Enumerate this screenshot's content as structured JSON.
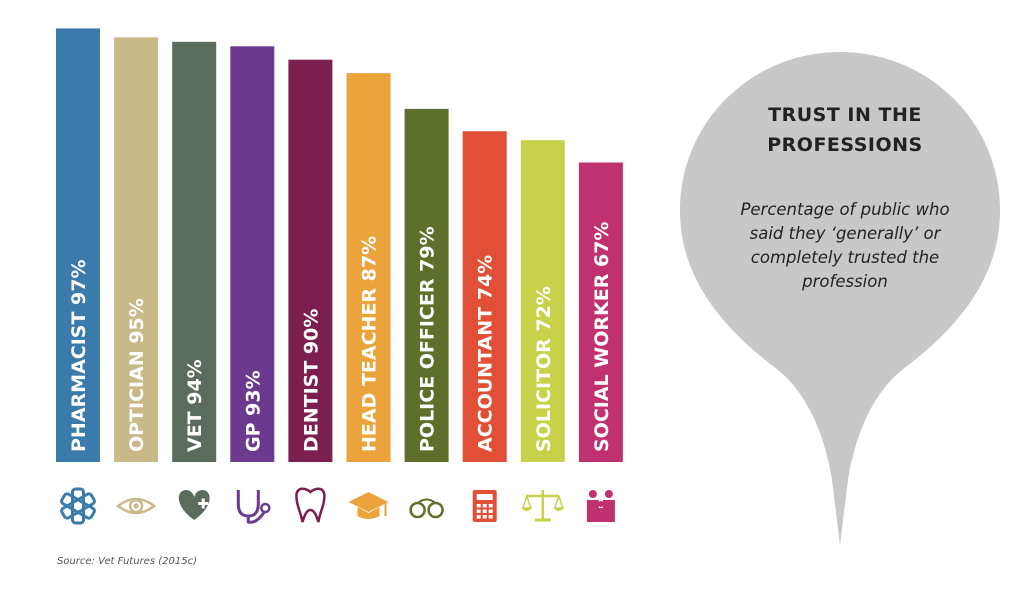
{
  "chart_data": {
    "type": "bar",
    "categories": [
      "PHARMACIST",
      "OPTICIAN",
      "VET",
      "GP",
      "DENTIST",
      "HEAD TEACHER",
      "POLICE OFFICER",
      "ACCOUNTANT",
      "SOLICITOR",
      "SOCIAL WORKER"
    ],
    "values": [
      97,
      95,
      94,
      93,
      90,
      87,
      79,
      74,
      72,
      67
    ],
    "labels": [
      "PHARMACIST 97%",
      "OPTICIAN 95%",
      "VET 94%",
      "GP 93%",
      "DENTIST 90%",
      "HEAD TEACHER 87%",
      "POLICE OFFICER 79%",
      "ACCOUNTANT 74%",
      "SOLICITOR 72%",
      "SOCIAL WORKER 67%"
    ],
    "colors": [
      "#3a7bab",
      "#c9b888",
      "#5b6b5e",
      "#6b3a8e",
      "#7b1f4e",
      "#eaa43b",
      "#5d6f2a",
      "#e04f36",
      "#c8d14a",
      "#c0316f"
    ],
    "icons": [
      "star-of-life-icon",
      "eye-icon",
      "pet-heart-icon",
      "stethoscope-icon",
      "tooth-icon",
      "graduation-cap-icon",
      "handcuffs-icon",
      "calculator-icon",
      "scales-icon",
      "family-icon"
    ],
    "ylim": [
      0,
      100
    ],
    "title": "TRUST IN THE PROFESSIONS",
    "subtitle": "Percentage of public who said they ‘generally’ or completely trusted the profession",
    "source": "Source: Vet Futures (2015c)"
  },
  "callout": {
    "title_line1": "TRUST IN THE",
    "title_line2": "PROFESSIONS",
    "sub_line1": "Percentage of public who",
    "sub_line2": "said they ‘generally’ or",
    "sub_line3": "completely trusted the",
    "sub_line4": "profession",
    "bg_color": "#c8c8c8"
  }
}
